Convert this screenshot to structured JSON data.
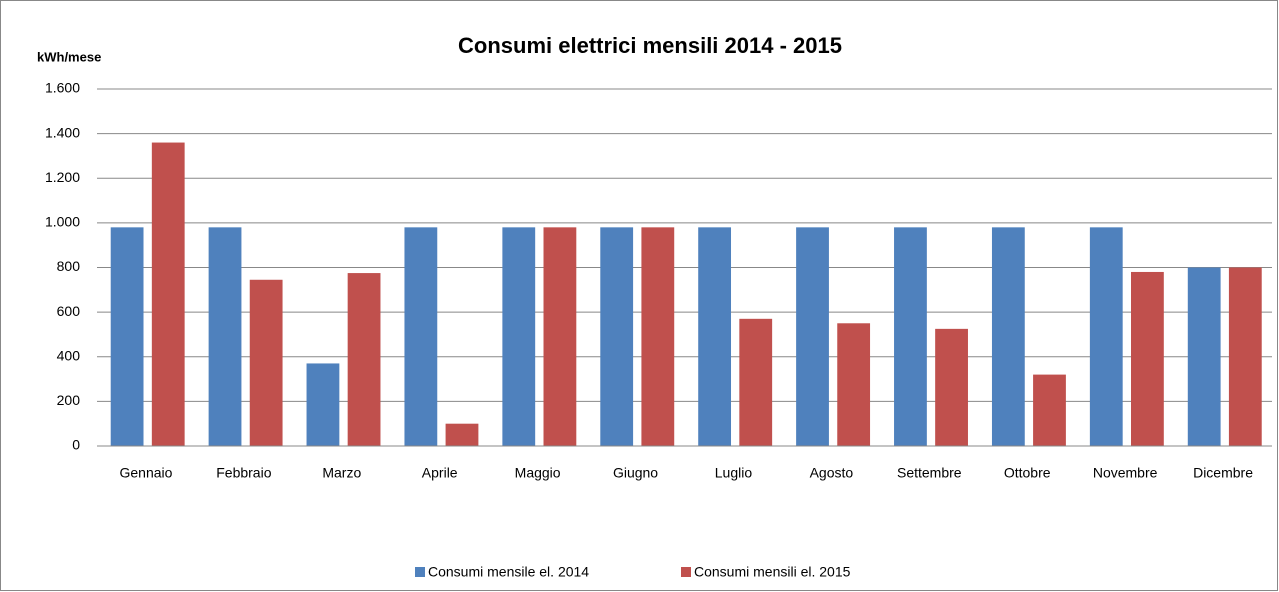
{
  "chart_data": {
    "type": "bar",
    "title": "Consumi  elettrici mensili 2014 - 2015",
    "y_label": "kWh/mese",
    "categories": [
      "Gennaio",
      "Febbraio",
      "Marzo",
      "Aprile",
      "Maggio",
      "Giugno",
      "Luglio",
      "Agosto",
      "Settembre",
      "Ottobre",
      "Novembre",
      "Dicembre"
    ],
    "series": [
      {
        "name": "Consumi mensile el. 2014",
        "color": "#4f81bd",
        "values": [
          980,
          980,
          370,
          980,
          980,
          980,
          980,
          980,
          980,
          980,
          980,
          800
        ]
      },
      {
        "name": "Consumi mensili el. 2015",
        "color": "#c0504d",
        "values": [
          1360,
          745,
          775,
          100,
          980,
          980,
          570,
          550,
          525,
          320,
          780,
          800
        ]
      }
    ],
    "ylim": [
      0,
      1600
    ],
    "yticks": [
      0,
      200,
      400,
      600,
      800,
      {
        "value": 1000,
        "label": "1.000"
      },
      {
        "value": 1200,
        "label": "1.200"
      },
      {
        "value": 1400,
        "label": "1.400"
      },
      {
        "value": 1600,
        "label": "1.600"
      }
    ],
    "grid": true,
    "legend": "bottom"
  }
}
